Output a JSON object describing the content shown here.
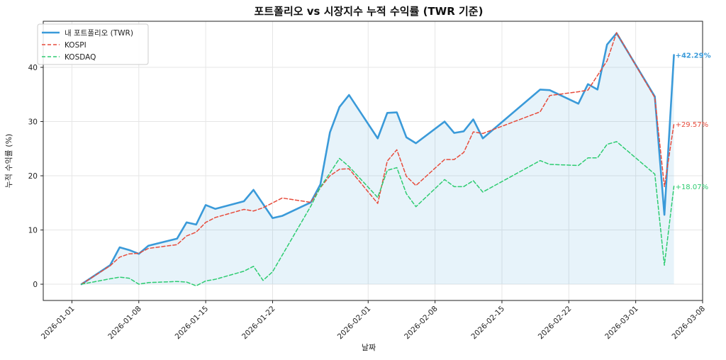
{
  "chart_data": {
    "type": "line",
    "title": "포트폴리오 vs 시장지수 누적 수익률 (TWR 기준)",
    "xlabel": "날짜",
    "ylabel": "누적 수익률 (%)",
    "x_tick_labels": [
      "2026-01-01",
      "2026-01-08",
      "2026-01-15",
      "2026-01-22",
      "2026-02-01",
      "2026-02-08",
      "2026-02-15",
      "2026-02-22",
      "2026-03-01",
      "2026-03-08"
    ],
    "x_ticks": [
      "2026-01-01",
      "2026-01-08",
      "2026-01-15",
      "2026-01-22",
      "2026-02-01",
      "2026-02-08",
      "2026-02-15",
      "2026-02-22",
      "2026-03-01",
      "2026-03-08"
    ],
    "xlim": [
      "2025-12-29",
      "2026-03-08"
    ],
    "y_ticks": [
      0,
      10,
      20,
      30,
      40
    ],
    "ylim": [
      -3,
      48.5
    ],
    "grid": true,
    "legend_position": "top-left",
    "series": [
      {
        "name": "내 포트폴리오 (TWR)",
        "color": "#3a9ad9",
        "style": "solid",
        "fill": true,
        "end_label": "+42.29%",
        "points": [
          [
            "2026-01-02",
            0.0
          ],
          [
            "2026-01-05",
            3.5
          ],
          [
            "2026-01-06",
            6.8
          ],
          [
            "2026-01-07",
            6.3
          ],
          [
            "2026-01-08",
            5.6
          ],
          [
            "2026-01-09",
            7.1
          ],
          [
            "2026-01-12",
            8.4
          ],
          [
            "2026-01-13",
            11.4
          ],
          [
            "2026-01-14",
            11.0
          ],
          [
            "2026-01-15",
            14.6
          ],
          [
            "2026-01-16",
            13.9
          ],
          [
            "2026-01-19",
            15.3
          ],
          [
            "2026-01-20",
            17.4
          ],
          [
            "2026-01-22",
            12.2
          ],
          [
            "2026-01-23",
            12.6
          ],
          [
            "2026-01-26",
            15.1
          ],
          [
            "2026-01-27",
            18.4
          ],
          [
            "2026-01-28",
            28.0
          ],
          [
            "2026-01-29",
            32.7
          ],
          [
            "2026-01-30",
            34.9
          ],
          [
            "2026-02-02",
            26.9
          ],
          [
            "2026-02-03",
            31.6
          ],
          [
            "2026-02-04",
            31.7
          ],
          [
            "2026-02-05",
            27.1
          ],
          [
            "2026-02-06",
            26.0
          ],
          [
            "2026-02-09",
            30.0
          ],
          [
            "2026-02-10",
            27.9
          ],
          [
            "2026-02-11",
            28.2
          ],
          [
            "2026-02-12",
            30.4
          ],
          [
            "2026-02-13",
            26.9
          ],
          [
            "2026-02-19",
            35.9
          ],
          [
            "2026-02-20",
            35.8
          ],
          [
            "2026-02-23",
            33.3
          ],
          [
            "2026-02-24",
            36.9
          ],
          [
            "2026-02-25",
            35.9
          ],
          [
            "2026-02-26",
            44.2
          ],
          [
            "2026-02-27",
            46.3
          ],
          [
            "2026-03-03",
            34.6
          ],
          [
            "2026-03-04",
            12.8
          ],
          [
            "2026-03-05",
            42.29
          ]
        ]
      },
      {
        "name": "KOSPI",
        "color": "#e74c3c",
        "style": "dashed",
        "fill": false,
        "end_label": "+29.57%",
        "points": [
          [
            "2026-01-02",
            0.0
          ],
          [
            "2026-01-05",
            3.4
          ],
          [
            "2026-01-06",
            5.0
          ],
          [
            "2026-01-07",
            5.6
          ],
          [
            "2026-01-08",
            5.7
          ],
          [
            "2026-01-09",
            6.6
          ],
          [
            "2026-01-12",
            7.3
          ],
          [
            "2026-01-13",
            8.9
          ],
          [
            "2026-01-14",
            9.6
          ],
          [
            "2026-01-15",
            11.4
          ],
          [
            "2026-01-16",
            12.3
          ],
          [
            "2026-01-19",
            13.8
          ],
          [
            "2026-01-20",
            13.5
          ],
          [
            "2026-01-21",
            14.1
          ],
          [
            "2026-01-23",
            15.9
          ],
          [
            "2026-01-26",
            15.1
          ],
          [
            "2026-01-27",
            17.8
          ],
          [
            "2026-01-28",
            20.0
          ],
          [
            "2026-01-29",
            21.2
          ],
          [
            "2026-01-30",
            21.3
          ],
          [
            "2026-02-02",
            14.9
          ],
          [
            "2026-02-03",
            22.7
          ],
          [
            "2026-02-04",
            24.8
          ],
          [
            "2026-02-05",
            19.9
          ],
          [
            "2026-02-06",
            18.2
          ],
          [
            "2026-02-09",
            23.0
          ],
          [
            "2026-02-10",
            23.0
          ],
          [
            "2026-02-11",
            24.3
          ],
          [
            "2026-02-12",
            28.1
          ],
          [
            "2026-02-13",
            27.8
          ],
          [
            "2026-02-19",
            31.8
          ],
          [
            "2026-02-20",
            34.8
          ],
          [
            "2026-02-23",
            35.5
          ],
          [
            "2026-02-24",
            35.8
          ],
          [
            "2026-02-25",
            38.5
          ],
          [
            "2026-02-26",
            41.2
          ],
          [
            "2026-02-27",
            46.4
          ],
          [
            "2026-03-03",
            34.4
          ],
          [
            "2026-03-04",
            18.0
          ],
          [
            "2026-03-05",
            29.57
          ]
        ]
      },
      {
        "name": "KOSDAQ",
        "color": "#2ecc71",
        "style": "dashed",
        "fill": false,
        "end_label": "+18.07%",
        "points": [
          [
            "2026-01-02",
            0.0
          ],
          [
            "2026-01-05",
            1.0
          ],
          [
            "2026-01-06",
            1.3
          ],
          [
            "2026-01-07",
            1.1
          ],
          [
            "2026-01-08",
            0.0
          ],
          [
            "2026-01-09",
            0.3
          ],
          [
            "2026-01-12",
            0.5
          ],
          [
            "2026-01-13",
            0.4
          ],
          [
            "2026-01-14",
            -0.3
          ],
          [
            "2026-01-15",
            0.6
          ],
          [
            "2026-01-16",
            0.9
          ],
          [
            "2026-01-19",
            2.4
          ],
          [
            "2026-01-20",
            3.3
          ],
          [
            "2026-01-21",
            0.7
          ],
          [
            "2026-01-22",
            2.3
          ],
          [
            "2026-01-26",
            14.4
          ],
          [
            "2026-01-27",
            17.9
          ],
          [
            "2026-01-28",
            20.5
          ],
          [
            "2026-01-29",
            23.2
          ],
          [
            "2026-01-30",
            21.7
          ],
          [
            "2026-02-02",
            16.0
          ],
          [
            "2026-02-03",
            21.0
          ],
          [
            "2026-02-04",
            21.5
          ],
          [
            "2026-02-05",
            16.7
          ],
          [
            "2026-02-06",
            14.3
          ],
          [
            "2026-02-09",
            19.3
          ],
          [
            "2026-02-10",
            18.0
          ],
          [
            "2026-02-11",
            18.0
          ],
          [
            "2026-02-12",
            19.1
          ],
          [
            "2026-02-13",
            17.0
          ],
          [
            "2026-02-19",
            22.8
          ],
          [
            "2026-02-20",
            22.1
          ],
          [
            "2026-02-23",
            21.9
          ],
          [
            "2026-02-24",
            23.3
          ],
          [
            "2026-02-25",
            23.3
          ],
          [
            "2026-02-26",
            25.8
          ],
          [
            "2026-02-27",
            26.3
          ],
          [
            "2026-03-03",
            20.3
          ],
          [
            "2026-03-04",
            3.5
          ],
          [
            "2026-03-05",
            18.07
          ]
        ]
      }
    ]
  }
}
